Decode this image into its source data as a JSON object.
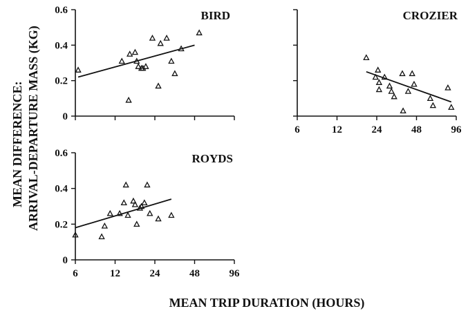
{
  "figure": {
    "ylabel_line1": "MEAN DIFFERENCE:",
    "ylabel_line2": "ARRIVAL-DEPARTURE MASS (KG)",
    "xlabel": "MEAN TRIP DURATION (HOURS)"
  },
  "chart_data": [
    {
      "type": "scatter",
      "title": "BIRD",
      "xscale": "log",
      "x_ticks": [
        6,
        12,
        24,
        48,
        96
      ],
      "y_ticks": [
        0,
        0.2,
        0.4,
        0.6
      ],
      "ylim": [
        0,
        0.6
      ],
      "show_x_tick_labels": false,
      "show_y_tick_labels": true,
      "points": [
        {
          "x": 6.3,
          "y": 0.26
        },
        {
          "x": 13.5,
          "y": 0.31
        },
        {
          "x": 15.5,
          "y": 0.35
        },
        {
          "x": 15.2,
          "y": 0.09
        },
        {
          "x": 17.0,
          "y": 0.36
        },
        {
          "x": 17.5,
          "y": 0.31
        },
        {
          "x": 18.0,
          "y": 0.28
        },
        {
          "x": 19.0,
          "y": 0.27
        },
        {
          "x": 19.5,
          "y": 0.27
        },
        {
          "x": 20.5,
          "y": 0.28
        },
        {
          "x": 23.0,
          "y": 0.44
        },
        {
          "x": 25.5,
          "y": 0.17
        },
        {
          "x": 26.5,
          "y": 0.41
        },
        {
          "x": 29.5,
          "y": 0.44
        },
        {
          "x": 32.0,
          "y": 0.31
        },
        {
          "x": 34.0,
          "y": 0.24
        },
        {
          "x": 38.0,
          "y": 0.38
        },
        {
          "x": 52.0,
          "y": 0.47
        }
      ],
      "fit": [
        {
          "x": 6.3,
          "y": 0.22
        },
        {
          "x": 48,
          "y": 0.4
        }
      ]
    },
    {
      "type": "scatter",
      "title": "CROZIER",
      "xscale": "log",
      "x_ticks": [
        6,
        12,
        24,
        48,
        96
      ],
      "y_ticks": [
        0,
        0.2,
        0.4,
        0.6
      ],
      "ylim": [
        0,
        0.6
      ],
      "show_x_tick_labels": true,
      "show_y_tick_labels": false,
      "points": [
        {
          "x": 20.0,
          "y": 0.33
        },
        {
          "x": 23.5,
          "y": 0.22
        },
        {
          "x": 24.5,
          "y": 0.26
        },
        {
          "x": 25.0,
          "y": 0.19
        },
        {
          "x": 25.0,
          "y": 0.15
        },
        {
          "x": 27.5,
          "y": 0.22
        },
        {
          "x": 30.0,
          "y": 0.17
        },
        {
          "x": 31.0,
          "y": 0.14
        },
        {
          "x": 32.5,
          "y": 0.11
        },
        {
          "x": 37.5,
          "y": 0.24
        },
        {
          "x": 38.0,
          "y": 0.03
        },
        {
          "x": 41.5,
          "y": 0.14
        },
        {
          "x": 44.5,
          "y": 0.24
        },
        {
          "x": 46.0,
          "y": 0.18
        },
        {
          "x": 61.0,
          "y": 0.1
        },
        {
          "x": 64.0,
          "y": 0.06
        },
        {
          "x": 83.0,
          "y": 0.16
        },
        {
          "x": 88.0,
          "y": 0.05
        }
      ],
      "fit": [
        {
          "x": 20,
          "y": 0.25
        },
        {
          "x": 88,
          "y": 0.08
        }
      ]
    },
    {
      "type": "scatter",
      "title": "ROYDS",
      "xscale": "log",
      "x_ticks": [
        6,
        12,
        24,
        48,
        96
      ],
      "y_ticks": [
        0,
        0.2,
        0.4,
        0.6
      ],
      "ylim": [
        0,
        0.6
      ],
      "show_x_tick_labels": true,
      "show_y_tick_labels": true,
      "points": [
        {
          "x": 6.0,
          "y": 0.14
        },
        {
          "x": 9.5,
          "y": 0.13
        },
        {
          "x": 10.0,
          "y": 0.19
        },
        {
          "x": 11.0,
          "y": 0.26
        },
        {
          "x": 13.0,
          "y": 0.26
        },
        {
          "x": 14.0,
          "y": 0.32
        },
        {
          "x": 14.5,
          "y": 0.42
        },
        {
          "x": 15.0,
          "y": 0.25
        },
        {
          "x": 16.5,
          "y": 0.33
        },
        {
          "x": 17.0,
          "y": 0.31
        },
        {
          "x": 17.5,
          "y": 0.2
        },
        {
          "x": 18.5,
          "y": 0.29
        },
        {
          "x": 19.0,
          "y": 0.3
        },
        {
          "x": 20.0,
          "y": 0.32
        },
        {
          "x": 21.0,
          "y": 0.42
        },
        {
          "x": 22.0,
          "y": 0.26
        },
        {
          "x": 25.5,
          "y": 0.23
        },
        {
          "x": 32.0,
          "y": 0.25
        }
      ],
      "fit": [
        {
          "x": 6,
          "y": 0.18
        },
        {
          "x": 32,
          "y": 0.34
        }
      ]
    }
  ]
}
